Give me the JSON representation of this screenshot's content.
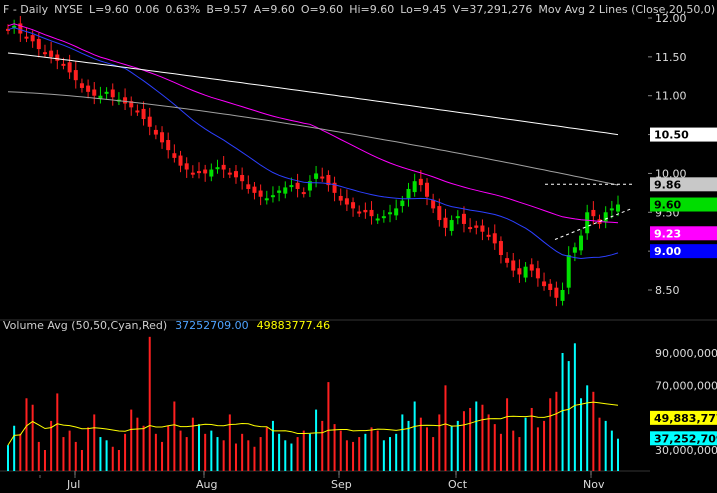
{
  "header": {
    "symbol": "F - Daily",
    "exchange": "NYSE",
    "last": "L=9.60",
    "change": "0.06",
    "change_pct": "0.63%",
    "bid": "B=9.57",
    "ask": "A=9.60",
    "open": "O=9.60",
    "high": "Hi=9.60",
    "low": "Lo=9.45",
    "volume": "V=37,291,276",
    "ma_label": "Mov Avg 2 Lines (Close,20,50,0)"
  },
  "volume_header": {
    "label": "Volume Avg (50,50,Cyan,Red)",
    "v1": "37252709.00",
    "v2": "49883777.46"
  },
  "chart_data": {
    "type": "candlestick",
    "price_axis": {
      "ticks": [
        "12.00",
        "11.50",
        "11.00",
        "10.50",
        "10.00",
        "9.50",
        "9.00",
        "8.50"
      ],
      "range": [
        8.15,
        12.15
      ]
    },
    "volume_axis": {
      "ticks": [
        "90,000,000",
        "70,000,000",
        "50,000,000",
        "30,000,000"
      ],
      "range": [
        25000000,
        101000000
      ]
    },
    "x_labels": [
      "Jul",
      "Aug",
      "Sep",
      "Oct",
      "Nov"
    ],
    "price_tags": [
      {
        "value": "10.50",
        "color": "#ffffff",
        "text_color": "#000000"
      },
      {
        "value": "9.86",
        "color": "#c8c8c8",
        "text_color": "#000000"
      },
      {
        "value": "9.60",
        "color": "#00dd00",
        "text_color": "#000000"
      },
      {
        "value": "9.23",
        "color": "#ff00ff",
        "text_color": "#ffffff"
      },
      {
        "value": "9.00",
        "color": "#0000ff",
        "text_color": "#ffffff"
      }
    ],
    "volume_tags": [
      {
        "value": "49,883,777",
        "color": "#ffff00",
        "text_color": "#000000"
      },
      {
        "value": "37,252,709",
        "color": "#00ffff",
        "text_color": "#000000"
      }
    ],
    "closes": [
      11.85,
      11.9,
      11.8,
      11.75,
      11.7,
      11.6,
      11.55,
      11.5,
      11.45,
      11.4,
      11.3,
      11.2,
      11.1,
      11.05,
      11.0,
      11.0,
      11.05,
      10.98,
      10.95,
      10.9,
      10.85,
      10.8,
      10.7,
      10.6,
      10.5,
      10.4,
      10.3,
      10.2,
      10.1,
      10.05,
      10.0,
      10.02,
      10.0,
      10.05,
      10.08,
      10.05,
      10.0,
      9.95,
      9.9,
      9.8,
      9.75,
      9.7,
      9.68,
      9.72,
      9.78,
      9.82,
      9.85,
      9.8,
      9.75,
      9.9,
      10.0,
      9.95,
      9.85,
      9.75,
      9.65,
      9.6,
      9.55,
      9.5,
      9.5,
      9.45,
      9.42,
      9.45,
      9.5,
      9.55,
      9.65,
      9.8,
      9.9,
      9.85,
      9.7,
      9.55,
      9.4,
      9.3,
      9.4,
      9.45,
      9.35,
      9.3,
      9.3,
      9.25,
      9.2,
      9.1,
      8.95,
      8.85,
      8.75,
      8.7,
      8.8,
      8.75,
      8.65,
      8.55,
      8.5,
      8.4,
      8.5,
      8.95,
      9.05,
      9.2,
      9.5,
      9.45,
      9.35,
      9.5,
      9.55,
      9.6
    ],
    "high_low_spread": 0.12,
    "volume_values": [
      33,
      45,
      40,
      62,
      58,
      35,
      30,
      48,
      65,
      38,
      42,
      35,
      30,
      44,
      52,
      38,
      36,
      32,
      30,
      40,
      55,
      50,
      45,
      100,
      40,
      35,
      45,
      60,
      42,
      38,
      50,
      46,
      40,
      42,
      38,
      36,
      52,
      34,
      40,
      36,
      32,
      38,
      44,
      48,
      40,
      36,
      34,
      38,
      42,
      40,
      55,
      48,
      72,
      46,
      42,
      36,
      35,
      38,
      40,
      44,
      42,
      36,
      38,
      40,
      52,
      48,
      60,
      50,
      44,
      38,
      52,
      70,
      45,
      48,
      54,
      56,
      60,
      58,
      52,
      46,
      40,
      62,
      42,
      38,
      50,
      56,
      44,
      48,
      62,
      66,
      90,
      85,
      96,
      62,
      70,
      66,
      50,
      48,
      42,
      37
    ],
    "volume_colors": "alternating red/cyan by price direction",
    "volume_avg_line": "yellow",
    "ma_lines": [
      "magenta (50)",
      "blue (20)",
      "white (100)",
      "gray (200)"
    ]
  }
}
